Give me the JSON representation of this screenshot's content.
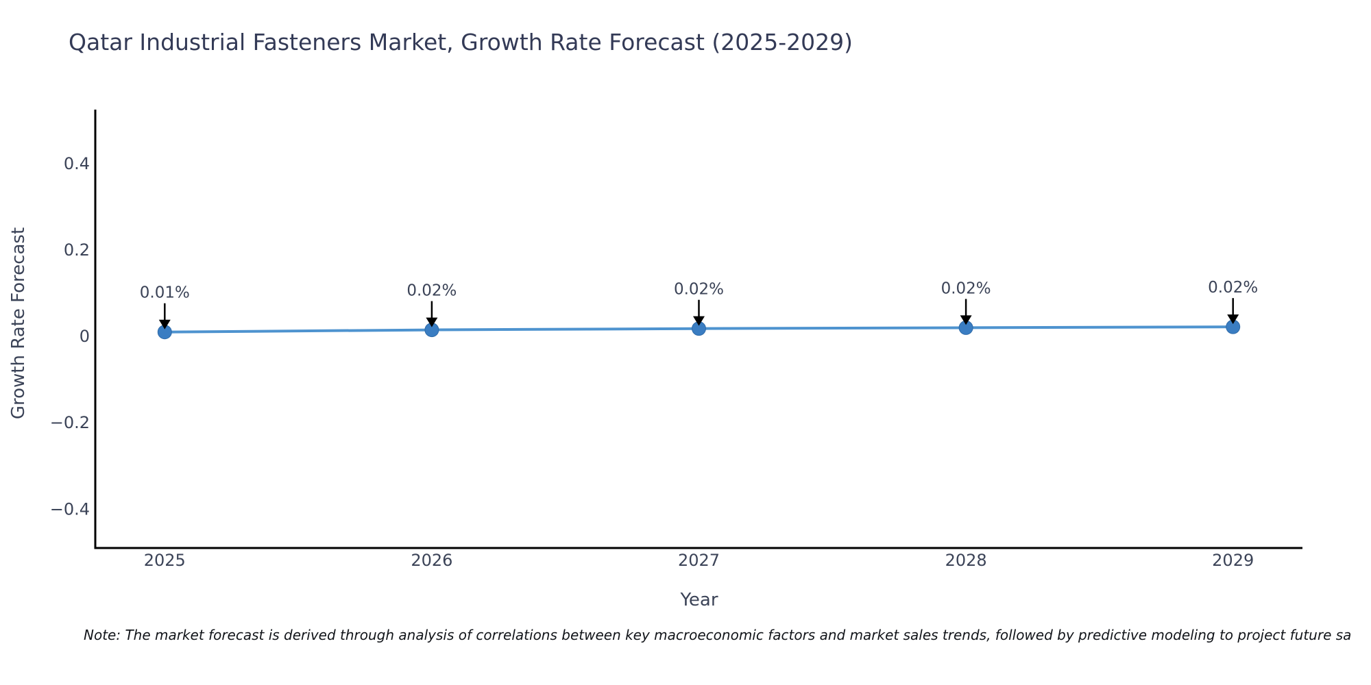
{
  "chart_data": {
    "type": "line",
    "title": "Qatar Industrial Fasteners Market, Growth Rate Forecast (2025-2029)",
    "xlabel": "Year",
    "ylabel": "Growth Rate Forecast",
    "x": [
      2025,
      2026,
      2027,
      2028,
      2029
    ],
    "values": [
      0.01,
      0.015,
      0.018,
      0.02,
      0.022
    ],
    "point_labels": [
      "0.01%",
      "0.02%",
      "0.02%",
      "0.02%",
      "0.02%"
    ],
    "xtick_labels": [
      "2025",
      "2026",
      "2027",
      "2028",
      "2029"
    ],
    "yticks": [
      0.4,
      0.2,
      0,
      -0.2,
      -0.4
    ],
    "ytick_labels": [
      "0.4",
      "0.2",
      "0",
      "−0.2",
      "−0.4"
    ],
    "xlim": [
      2024.74,
      2029.26
    ],
    "ylim": [
      -0.49,
      0.525
    ],
    "grid": false,
    "legend": "none",
    "line_color": "#4e93cf",
    "marker_color": "#3a7dc2",
    "marker_edge_color": "#2e6aa8",
    "spine_color": "#000000",
    "arrow_color": "#000000",
    "tick_text_color": "#3b4357",
    "title_color": "#333a56"
  },
  "note": {
    "text": "Note: The market forecast is derived through analysis of correlations between key macroeconomic factors and market sales trends, followed by predictive modeling to project future sa"
  }
}
